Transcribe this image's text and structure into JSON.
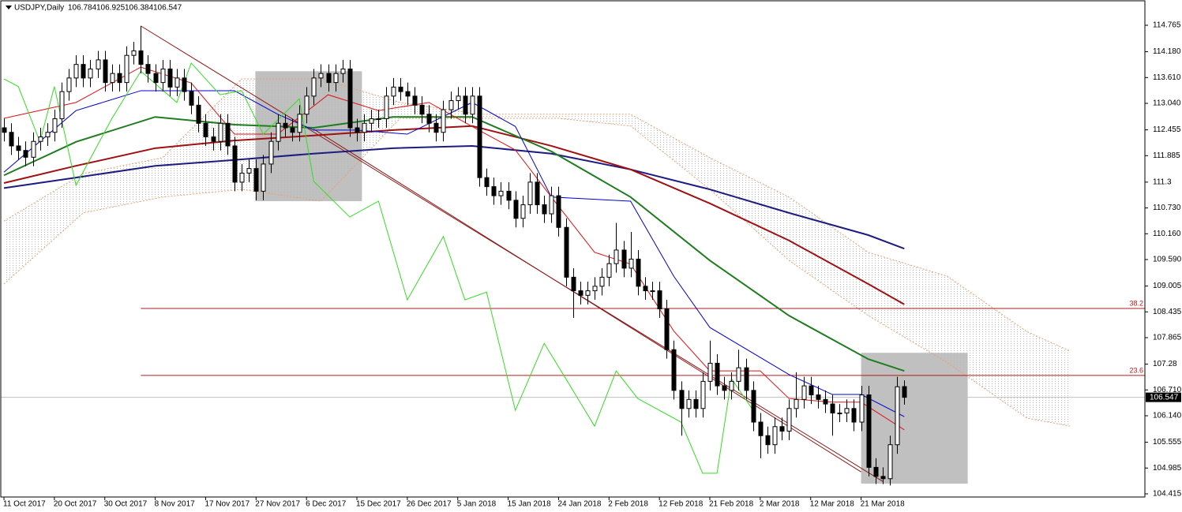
{
  "chart_data": {
    "type": "candlestick",
    "symbol": "USDJPY,Daily",
    "open": [
      112.5,
      112.4,
      112.1,
      112.0,
      111.85,
      112.2,
      112.3,
      112.4,
      112.7,
      113.3,
      113.6,
      113.9,
      113.6,
      113.8,
      114.0,
      113.5,
      113.7,
      113.5,
      114.1,
      114.2,
      113.9,
      113.7,
      113.5,
      113.8,
      113.4,
      113.6,
      113.3,
      113.0,
      112.6,
      112.3,
      112.2,
      112.6,
      112.1,
      111.3,
      111.5,
      111.6,
      111.1,
      111.7,
      112.2,
      112.6,
      112.5,
      112.4,
      112.8,
      113.2,
      113.6,
      113.7,
      113.5,
      113.7,
      113.8,
      112.5,
      112.4,
      112.6,
      112.7,
      112.7,
      113.2,
      113.4,
      113.3,
      113.2,
      113.0,
      112.8,
      112.6,
      112.4,
      112.9,
      113.1,
      113.2,
      112.8,
      113.2,
      111.4,
      111.2,
      111.0,
      111.1,
      110.9,
      110.5,
      110.8,
      111.3,
      110.8,
      110.6,
      111.0,
      110.3,
      109.2,
      108.9,
      108.8,
      108.9,
      109.0,
      109.2,
      109.5,
      109.8,
      109.4,
      109.6,
      109.0,
      108.9,
      108.9,
      108.5,
      107.6,
      106.7,
      106.3,
      106.5,
      106.3,
      106.9,
      107.3,
      106.8,
      106.7,
      106.9,
      107.2,
      106.7,
      106.0,
      105.7,
      105.5,
      105.9,
      105.8,
      106.3,
      106.5,
      106.8,
      106.6,
      106.5,
      106.4,
      106.2,
      106.2,
      106.3,
      106.0,
      106.6,
      105.0,
      104.8,
      104.75,
      105.5,
      106.784
    ],
    "high": [
      112.7,
      112.6,
      112.3,
      112.2,
      112.4,
      112.5,
      112.6,
      112.9,
      113.5,
      113.8,
      114.1,
      114.1,
      114.0,
      114.2,
      114.2,
      113.9,
      113.9,
      114.3,
      114.4,
      114.75,
      114.1,
      113.9,
      114.0,
      114.0,
      113.8,
      113.8,
      113.5,
      113.2,
      112.8,
      112.5,
      112.8,
      112.8,
      112.3,
      111.7,
      111.8,
      111.8,
      111.9,
      112.4,
      112.8,
      112.8,
      112.7,
      113.0,
      113.4,
      113.8,
      113.9,
      113.9,
      113.9,
      114.0,
      114.0,
      112.7,
      112.8,
      112.9,
      112.9,
      113.4,
      113.6,
      113.6,
      113.5,
      113.4,
      113.2,
      113.0,
      112.8,
      113.1,
      113.3,
      113.4,
      113.4,
      113.4,
      113.4,
      111.6,
      111.4,
      111.3,
      111.3,
      111.1,
      111.0,
      111.5,
      111.5,
      111.0,
      111.2,
      111.2,
      110.5,
      109.4,
      109.1,
      109.1,
      109.2,
      109.4,
      109.7,
      110.4,
      110.0,
      110.2,
      109.8,
      109.2,
      109.1,
      109.1,
      108.7,
      107.8,
      106.9,
      106.7,
      106.7,
      107.1,
      107.8,
      107.5,
      107.0,
      107.1,
      107.6,
      107.4,
      106.9,
      106.2,
      105.9,
      106.1,
      106.1,
      106.5,
      107.1,
      107.0,
      107.0,
      106.8,
      106.7,
      106.6,
      106.4,
      106.5,
      106.5,
      106.8,
      106.8,
      105.2,
      105.0,
      105.7,
      107.0,
      106.925
    ],
    "low": [
      112.2,
      111.9,
      111.8,
      111.65,
      111.65,
      112.0,
      112.1,
      112.2,
      112.5,
      113.1,
      113.4,
      113.4,
      113.4,
      113.6,
      113.3,
      113.3,
      113.3,
      113.3,
      113.9,
      113.7,
      113.5,
      113.3,
      113.3,
      113.2,
      113.2,
      113.1,
      112.8,
      112.4,
      112.1,
      112.0,
      112.0,
      111.9,
      111.1,
      111.1,
      111.3,
      110.9,
      110.9,
      111.5,
      112.0,
      112.3,
      112.2,
      112.2,
      112.6,
      113.0,
      113.4,
      113.3,
      113.3,
      113.5,
      112.3,
      112.2,
      112.2,
      112.4,
      112.5,
      112.5,
      113.0,
      113.1,
      113.0,
      112.8,
      112.6,
      112.4,
      112.2,
      112.2,
      112.7,
      112.9,
      112.6,
      112.6,
      111.2,
      111.0,
      110.8,
      110.8,
      110.7,
      110.3,
      110.3,
      110.6,
      110.6,
      110.4,
      110.4,
      110.1,
      109.0,
      108.3,
      108.6,
      108.6,
      108.7,
      108.8,
      109.0,
      109.3,
      109.2,
      109.2,
      108.8,
      108.7,
      108.7,
      108.3,
      107.4,
      106.5,
      105.7,
      106.1,
      106.1,
      106.1,
      106.7,
      106.6,
      106.5,
      106.5,
      106.7,
      106.5,
      105.8,
      105.2,
      105.3,
      105.3,
      105.6,
      105.6,
      106.1,
      106.3,
      106.4,
      106.3,
      106.2,
      105.7,
      106.0,
      106.0,
      105.8,
      105.8,
      104.8,
      104.63,
      104.63,
      104.6,
      105.3,
      106.384
    ],
    "close": [
      112.4,
      112.1,
      112.0,
      111.85,
      112.2,
      112.3,
      112.4,
      112.7,
      113.3,
      113.6,
      113.9,
      113.6,
      113.8,
      114.0,
      113.5,
      113.7,
      113.5,
      114.1,
      114.2,
      113.9,
      113.7,
      113.5,
      113.8,
      113.4,
      113.6,
      113.3,
      113.0,
      112.6,
      112.3,
      112.2,
      112.6,
      112.1,
      111.3,
      111.5,
      111.6,
      111.1,
      111.7,
      112.2,
      112.6,
      112.5,
      112.4,
      112.8,
      113.2,
      113.6,
      113.7,
      113.5,
      113.7,
      113.8,
      112.5,
      112.4,
      112.6,
      112.7,
      112.7,
      113.2,
      113.4,
      113.3,
      113.2,
      113.0,
      112.8,
      112.6,
      112.4,
      112.9,
      113.1,
      113.2,
      112.8,
      113.2,
      111.4,
      111.2,
      111.0,
      111.1,
      110.9,
      110.5,
      110.8,
      111.3,
      110.8,
      110.6,
      111.0,
      110.3,
      109.2,
      108.9,
      108.8,
      108.9,
      109.0,
      109.2,
      109.5,
      109.8,
      109.4,
      109.6,
      109.0,
      108.9,
      108.9,
      108.5,
      107.6,
      106.7,
      106.3,
      106.5,
      106.3,
      106.9,
      107.3,
      106.8,
      106.7,
      106.9,
      107.2,
      106.7,
      106.0,
      105.7,
      105.5,
      105.9,
      105.8,
      106.3,
      106.5,
      106.8,
      106.6,
      106.5,
      106.4,
      106.2,
      106.2,
      106.3,
      106.0,
      106.6,
      105.0,
      104.8,
      104.75,
      105.5,
      106.78,
      106.547
    ],
    "bull_color": "#ffffff",
    "bear_color": "#000000",
    "candle_edge": "#000000",
    "lines": [
      {
        "color": "#1c1c80",
        "x": [
          0,
          10,
          21,
          32,
          43,
          54,
          65,
          76,
          87,
          98,
          109,
          120,
          125
        ],
        "values": [
          111.17,
          111.4,
          111.66,
          111.79,
          111.93,
          112.05,
          112.1,
          111.93,
          111.58,
          111.14,
          110.62,
          110.13,
          109.83
        ]
      },
      {
        "color": "#a01010",
        "x": [
          0,
          10,
          21,
          32,
          43,
          54,
          65,
          76,
          87,
          98,
          109,
          120,
          125
        ],
        "values": [
          111.28,
          111.66,
          112.05,
          112.22,
          112.33,
          112.45,
          112.54,
          112.1,
          111.58,
          110.83,
          110.01,
          109.05,
          108.6
        ]
      },
      {
        "color": "#1e7d1e",
        "x": [
          0,
          10,
          21,
          32,
          43,
          54,
          65,
          76,
          87,
          98,
          109,
          120,
          125
        ],
        "values": [
          111.45,
          112.19,
          112.74,
          112.57,
          112.5,
          112.74,
          112.74,
          111.98,
          110.97,
          109.57,
          108.35,
          107.39,
          107.13
        ]
      },
      {
        "color": "#0000cc",
        "x": [
          0,
          10,
          19,
          27,
          32,
          38,
          43,
          49,
          56,
          65,
          71,
          76,
          87,
          93,
          98,
          109,
          115,
          119,
          125
        ],
        "values": [
          111.52,
          112.88,
          113.32,
          113.32,
          113.32,
          112.8,
          112.45,
          112.45,
          112.36,
          113.06,
          112.53,
          110.97,
          110.88,
          109.22,
          108.09,
          107.05,
          106.61,
          106.61,
          106.12
        ]
      },
      {
        "color": "#e01010",
        "x": [
          0,
          10,
          19,
          26,
          32,
          38,
          45,
          52,
          59,
          65,
          71,
          76,
          82,
          87,
          93,
          98,
          105,
          109,
          115,
          119,
          125
        ],
        "values": [
          112.71,
          113.06,
          113.84,
          113.49,
          112.36,
          112.36,
          113.23,
          112.88,
          113.06,
          112.53,
          112.01,
          110.97,
          109.75,
          109.49,
          108.01,
          107.13,
          107.13,
          106.52,
          106.44,
          106.44,
          105.83
        ]
      },
      {
        "color": "#33dd22",
        "x": [
          0,
          2,
          5,
          7,
          10,
          15,
          19,
          24,
          26,
          30,
          33,
          36,
          41,
          43,
          48,
          52,
          56,
          61,
          64,
          67,
          71,
          75,
          78,
          82,
          85,
          88,
          94,
          97,
          99,
          101,
          104
        ],
        "values": [
          113.58,
          113.41,
          112.19,
          113.41,
          111.23,
          112.71,
          113.75,
          113.06,
          113.93,
          113.23,
          113.32,
          112.36,
          113.14,
          111.32,
          110.53,
          110.88,
          108.7,
          110.1,
          108.7,
          108.87,
          106.26,
          107.74,
          106.96,
          105.91,
          107.13,
          106.52,
          106.0,
          104.87,
          104.87,
          106.96,
          106.26
        ]
      }
    ],
    "cloud": {
      "x": [
        0,
        11,
        22,
        33,
        44,
        55,
        66,
        77,
        87,
        98,
        109,
        120,
        131,
        142,
        148
      ],
      "upper": [
        110.44,
        111.49,
        111.84,
        113.58,
        113.58,
        113.06,
        112.8,
        112.8,
        112.8,
        111.84,
        110.97,
        109.75,
        109.22,
        108.0,
        107.57
      ],
      "lower": [
        109.05,
        110.62,
        110.97,
        111.14,
        110.88,
        112.71,
        112.71,
        112.71,
        112.54,
        111.14,
        109.57,
        108.35,
        107.31,
        106.09,
        105.91
      ],
      "edge_color": "#e8a070",
      "fill_color": "#b8b8b8"
    },
    "trendlines": [
      {
        "x": [
          19,
          122
        ],
        "values": [
          114.75,
          104.69
        ]
      },
      {
        "x": [
          43,
          119
        ],
        "values": [
          112.47,
          104.9
        ]
      }
    ],
    "trendline_color": "#8b1a1a",
    "boxes": [
      {
        "x": [
          34.9,
          49.7
        ],
        "values": [
          113.75,
          110.88
        ]
      },
      {
        "x": [
          119,
          133.8
        ],
        "values": [
          107.53,
          104.64
        ]
      }
    ],
    "box_color": "#c0c0c0",
    "levels": [
      {
        "label": "38.2",
        "value": 108.51
      },
      {
        "label": "23.6",
        "value": 107.03
      }
    ],
    "levels_start": 19,
    "level_color": "#b01c1c",
    "price_line_color": "#c0c0c0",
    "xlim": [
      -0.44,
      158.4
    ],
    "ylim": [
      104.345,
      115.323
    ],
    "yticks": [
      114.765,
      {
        "value": 114.18,
        "label": "114.180"
      },
      {
        "value": 113.61,
        "label": "113.610"
      },
      {
        "value": 113.04,
        "label": "113.040"
      },
      112.455,
      111.885,
      111.3,
      {
        "value": 110.73,
        "label": "110.730"
      },
      {
        "value": 110.16,
        "label": "110.160"
      },
      {
        "value": 109.59,
        "label": "109.590"
      },
      109.005,
      108.435,
      107.865,
      107.28,
      {
        "value": 106.71,
        "label": "106.710"
      },
      {
        "value": 106.14,
        "label": "106.140"
      },
      105.555,
      104.985,
      104.415
    ],
    "xticks": [
      {
        "value": 0,
        "label": "11 Oct 2017"
      },
      {
        "value": 7,
        "label": "20 Oct 2017"
      },
      {
        "value": 14,
        "label": "30 Oct 2017"
      },
      {
        "value": 21,
        "label": "8 Nov 2017"
      },
      {
        "value": 28,
        "label": "17 Nov 2017"
      },
      {
        "value": 35,
        "label": "27 Nov 2017"
      },
      {
        "value": 42,
        "label": "6 Dec 2017"
      },
      {
        "value": 49,
        "label": "15 Dec 2017"
      },
      {
        "value": 56,
        "label": "26 Dec 2017"
      },
      {
        "value": 63,
        "label": "5 Jan 2018"
      },
      {
        "value": 70,
        "label": "15 Jan 2018"
      },
      {
        "value": 77,
        "label": "24 Jan 2018"
      },
      {
        "value": 84,
        "label": "2 Feb 2018"
      },
      {
        "value": 91,
        "label": "12 Feb 2018"
      },
      {
        "value": 98,
        "label": "21 Feb 2018"
      },
      {
        "value": 105,
        "label": "2 Mar 2018"
      },
      {
        "value": 112,
        "label": "12 Mar 2018"
      },
      {
        "value": 119,
        "label": "21 Mar 2018"
      }
    ]
  }
}
